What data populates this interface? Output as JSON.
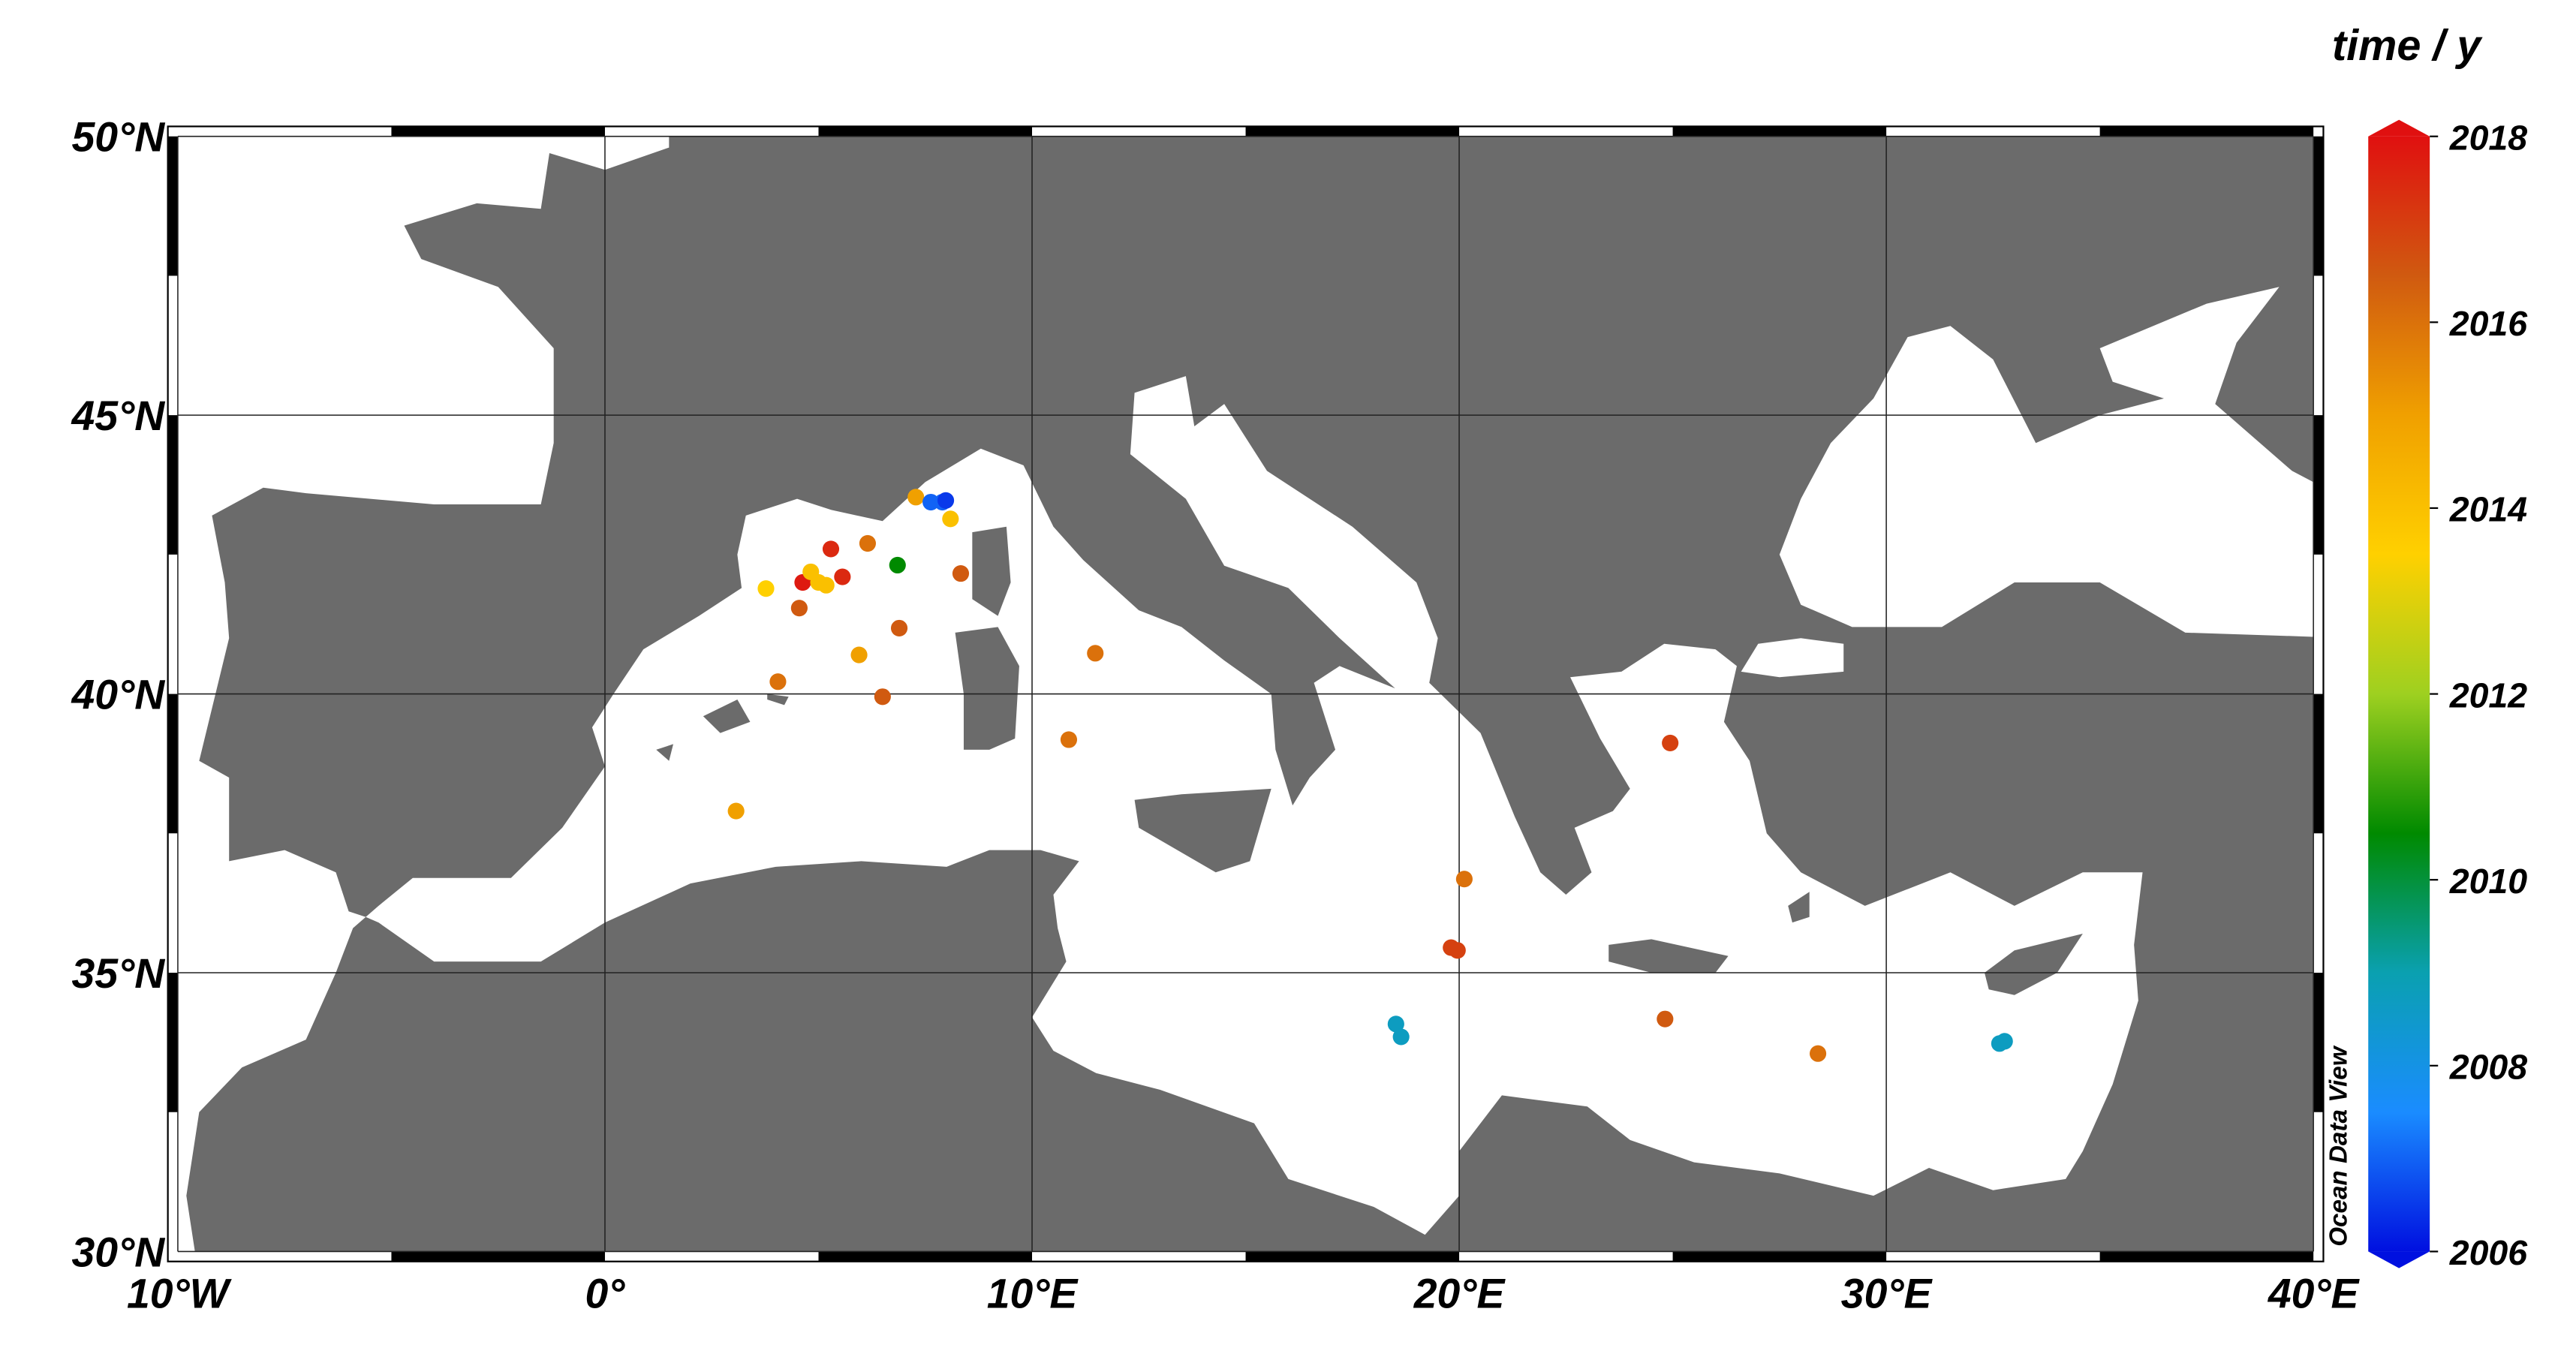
{
  "chart_data": {
    "type": "scatter",
    "x": [
      7.28,
      7.63,
      7.9,
      7.98,
      8.09,
      5.29,
      6.15,
      6.85,
      5.56,
      4.63,
      4.82,
      5.0,
      5.18,
      3.77,
      4.55,
      8.33,
      6.89,
      5.95,
      4.05,
      6.5,
      11.48,
      10.86,
      3.07,
      24.94,
      20.12,
      19.81,
      19.96,
      18.52,
      18.64,
      24.82,
      28.4,
      32.65,
      32.77
    ],
    "y": [
      43.53,
      43.44,
      43.44,
      43.47,
      43.14,
      42.6,
      42.7,
      42.31,
      42.1,
      42.0,
      42.19,
      42.0,
      41.95,
      41.89,
      41.54,
      42.16,
      41.18,
      40.7,
      40.22,
      39.95,
      40.73,
      39.18,
      37.9,
      39.12,
      36.68,
      35.45,
      35.4,
      34.08,
      33.85,
      34.17,
      33.55,
      33.73,
      33.77
    ],
    "values": [
      2015,
      2007,
      2007,
      2006.5,
      2014,
      2017.5,
      2016,
      2010.5,
      2017.5,
      2017.8,
      2014,
      2014,
      2014,
      2013.5,
      2016.5,
      2016.5,
      2016.5,
      2015,
      2016,
      2016.5,
      2016,
      2016,
      2015,
      2017,
      2016,
      2017,
      2017,
      2008.7,
      2008.7,
      2016.5,
      2016,
      2008.7,
      2008.7
    ],
    "xlim": [
      -10,
      40
    ],
    "ylim": [
      30,
      50
    ],
    "xticks": [
      {
        "value": -10,
        "label": "10°W"
      },
      {
        "value": 0,
        "label": "0°"
      },
      {
        "value": 10,
        "label": "10°E"
      },
      {
        "value": 20,
        "label": "20°E"
      },
      {
        "value": 30,
        "label": "30°E"
      },
      {
        "value": 40,
        "label": "40°E"
      }
    ],
    "yticks": [
      {
        "value": 30,
        "label": "30°N"
      },
      {
        "value": 35,
        "label": "35°N"
      },
      {
        "value": 40,
        "label": "40°N"
      },
      {
        "value": 45,
        "label": "45°N"
      },
      {
        "value": 50,
        "label": "50°N"
      }
    ],
    "grid": true,
    "colorbar_title": "time / y",
    "clim": [
      2006,
      2018
    ],
    "cticks": [
      2006,
      2008,
      2010,
      2012,
      2014,
      2016,
      2018
    ],
    "colormap": [
      "#0010e0",
      "#1a8cff",
      "#0aa0b0",
      "#008a00",
      "#9ed020",
      "#ffd000",
      "#f0a000",
      "#d05a10",
      "#e01010"
    ],
    "land_color": "#6b6b6b",
    "watermark": "Ocean Data View"
  }
}
